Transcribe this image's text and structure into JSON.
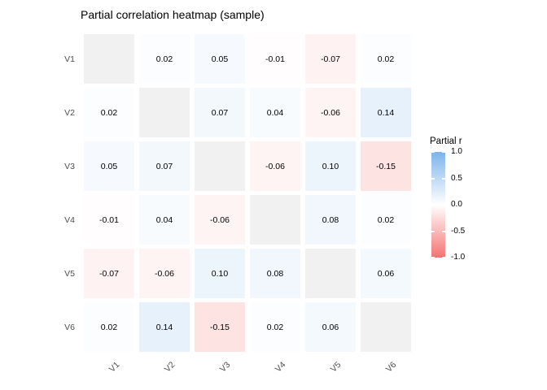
{
  "title": "Partial correlation heatmap (sample)",
  "chart_data": {
    "type": "heatmap",
    "title": "Partial correlation heatmap (sample)",
    "categories": [
      "V1",
      "V2",
      "V3",
      "V4",
      "V5",
      "V6"
    ],
    "matrix": [
      [
        null,
        0.02,
        0.05,
        -0.01,
        -0.07,
        0.02
      ],
      [
        0.02,
        null,
        0.07,
        0.04,
        -0.06,
        0.14
      ],
      [
        0.05,
        0.07,
        null,
        -0.06,
        0.1,
        -0.15
      ],
      [
        -0.01,
        0.04,
        -0.06,
        null,
        0.08,
        0.02
      ],
      [
        -0.07,
        -0.06,
        0.1,
        0.08,
        null,
        0.06
      ],
      [
        0.02,
        0.14,
        -0.15,
        0.02,
        0.06,
        null
      ]
    ],
    "value_decimals": 2,
    "legend": {
      "title": "Partial r",
      "ticks": [
        1.0,
        0.5,
        0.0,
        -0.5,
        -1.0
      ],
      "limits": [
        -1,
        1
      ],
      "high_color": "#7DB3EB",
      "mid_color": "#FFFFFF",
      "low_color": "#F37371",
      "na_color": "#F1F1F2",
      "position": "right"
    },
    "colors": {
      "axis_label": "#4d4d4d",
      "cell_text": "#000000",
      "panel_background": "#FFFFFF"
    }
  }
}
